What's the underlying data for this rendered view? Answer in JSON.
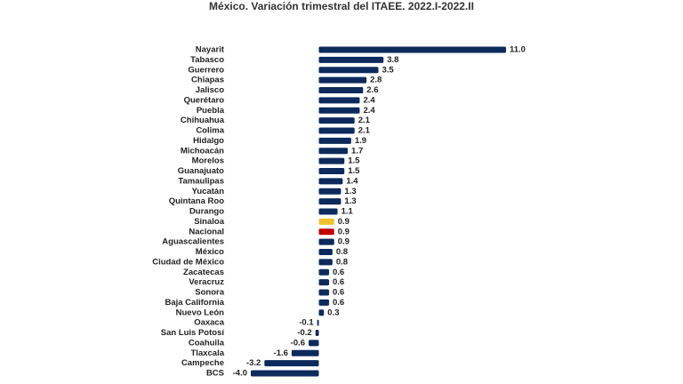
{
  "chart_data": {
    "type": "hbar",
    "title": "México. Variación trimestral del ITAEE. 2022.I-2022.II",
    "categories": [
      "Nayarit",
      "Tabasco",
      "Guerrero",
      "Chiapas",
      "Jalisco",
      "Querétaro",
      "Puebla",
      "Chihuahua",
      "Colima",
      "Hidalgo",
      "Michoacán",
      "Morelos",
      "Guanajuato",
      "Tamaulipas",
      "Yucatán",
      "Quintana Roo",
      "Durango",
      "Sinaloa",
      "Nacional",
      "Aguascalientes",
      "México",
      "Ciudad de México",
      "Zacatecas",
      "Veracruz",
      "Sonora",
      "Baja California",
      "Nuevo León",
      "Oaxaca",
      "San Luis Potosí",
      "Coahuila",
      "Tlaxcala",
      "Campeche",
      "BCS"
    ],
    "values": [
      11.0,
      3.8,
      3.5,
      2.8,
      2.6,
      2.4,
      2.4,
      2.1,
      2.1,
      1.9,
      1.7,
      1.5,
      1.5,
      1.4,
      1.3,
      1.3,
      1.1,
      0.9,
      0.9,
      0.9,
      0.8,
      0.8,
      0.6,
      0.6,
      0.6,
      0.6,
      0.3,
      -0.1,
      -0.2,
      -0.6,
      -1.6,
      -3.2,
      -4.0
    ],
    "value_labels": [
      "11.0",
      "3.8",
      "3.5",
      "2.8",
      "2.6",
      "2.4",
      "2.4",
      "2.1",
      "2.1",
      "1.9",
      "1.7",
      "1.5",
      "1.5",
      "1.4",
      "1.3",
      "1.3",
      "1.1",
      "0.9",
      "0.9",
      "0.9",
      "0.8",
      "0.8",
      "0.6",
      "0.6",
      "0.6",
      "0.6",
      "0.3",
      "-0.1",
      "-0.2",
      "-0.6",
      "-1.6",
      "-3.2",
      "-4.0"
    ],
    "colors": [
      "#0d2a5c",
      "#0d2a5c",
      "#0d2a5c",
      "#0d2a5c",
      "#0d2a5c",
      "#0d2a5c",
      "#0d2a5c",
      "#0d2a5c",
      "#0d2a5c",
      "#0d2a5c",
      "#0d2a5c",
      "#0d2a5c",
      "#0d2a5c",
      "#0d2a5c",
      "#0d2a5c",
      "#0d2a5c",
      "#0d2a5c",
      "#f2c12e",
      "#c00000",
      "#0d2a5c",
      "#0d2a5c",
      "#0d2a5c",
      "#0d2a5c",
      "#0d2a5c",
      "#0d2a5c",
      "#0d2a5c",
      "#0d2a5c",
      "#0d2a5c",
      "#0d2a5c",
      "#0d2a5c",
      "#0d2a5c",
      "#0d2a5c",
      "#0d2a5c"
    ],
    "xlim": [
      -4.0,
      11.0
    ]
  }
}
